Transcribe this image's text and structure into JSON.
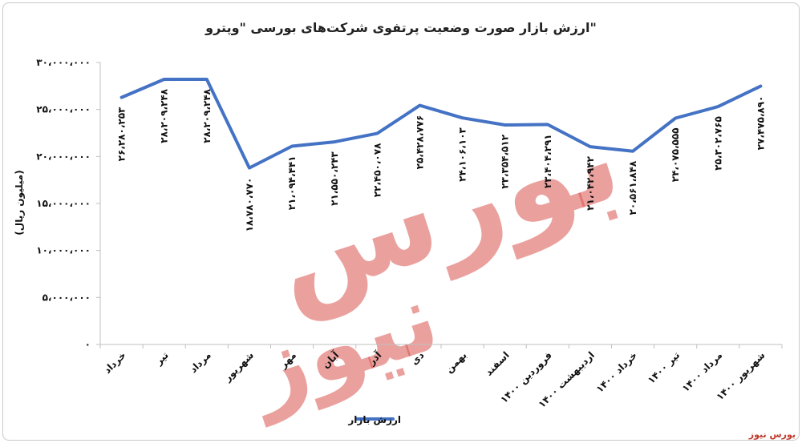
{
  "brand": {
    "corner_label": "بورس نیوز",
    "watermark": "بورس نیوز",
    "accent": "#4472c4",
    "watermark_color": "#d9534f"
  },
  "chart_data": {
    "type": "line",
    "title": "ارزش بازار صورت وضعیت پرتفوی شرکت‌های بورسی \"وپترو\"",
    "ylabel": "(میلیون ریال)",
    "xlabel": "",
    "ylim": [
      0,
      30000000
    ],
    "yticks": [
      0,
      5000000,
      10000000,
      15000000,
      20000000,
      25000000,
      30000000
    ],
    "ytick_labels": [
      "۰",
      "۵،۰۰۰،۰۰۰",
      "۱۰،۰۰۰،۰۰۰",
      "۱۵،۰۰۰،۰۰۰",
      "۲۰،۰۰۰،۰۰۰",
      "۲۵،۰۰۰،۰۰۰",
      "۳۰،۰۰۰،۰۰۰"
    ],
    "grid": false,
    "legend_position": "bottom",
    "categories": [
      "خرداد",
      "تیر",
      "مرداد",
      "شهریور",
      "مهر",
      "آبان",
      "آذر",
      "دی",
      "بهمن",
      "اسفند",
      "فروردین ۱۴۰۰",
      "اردیبهشت ۱۴۰۰",
      "خرداد ۱۴۰۰",
      "تیر ۱۴۰۰",
      "مرداد ۱۴۰۰",
      "شهریور ۱۴۰۰"
    ],
    "series": [
      {
        "name": "ارزش بازار",
        "color": "#4472c4",
        "values": [
          26280253,
          28209248,
          28209248,
          18780770,
          21094441,
          21550243,
          22450078,
          25428776,
          24106103,
          23354512,
          23404291,
          21042942,
          20561848,
          24075555,
          25302765,
          27475890
        ],
        "labels": [
          "۲۶،۲۸۰،۲۵۳",
          "۲۸،۲۰۹،۲۴۸",
          "۲۸،۲۰۹،۲۴۸",
          "۱۸،۷۸۰،۷۷۰",
          "۲۱،۰۹۴،۴۴۱",
          "۲۱،۵۵۰،۲۴۳",
          "۲۲،۴۵۰،۰۷۸",
          "۲۵،۴۲۸،۷۷۶",
          "۲۴،۱۰۶،۱۰۳",
          "۲۳،۳۵۴،۵۱۲",
          "۲۳،۴۰۴،۲۹۱",
          "۲۱،۰۴۲،۹۴۲",
          "۲۰،۵۶۱،۸۴۸",
          "۲۴،۰۷۵،۵۵۵",
          "۲۵،۳۰۲،۷۶۵",
          "۲۷،۴۷۵،۸۹۰"
        ]
      }
    ]
  }
}
